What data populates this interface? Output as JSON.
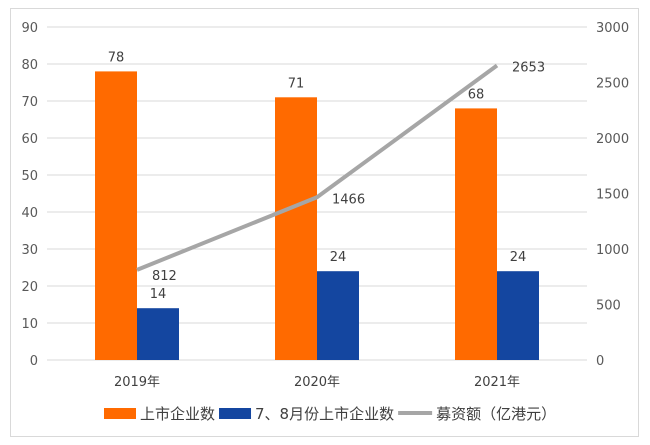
{
  "chart_data": {
    "type": "bar",
    "categories": [
      "2019年",
      "2020年",
      "2021年"
    ],
    "series": [
      {
        "name": "上市企业数",
        "type": "bar",
        "axis": "left",
        "values": [
          78,
          71,
          68
        ],
        "color": "#FF6A00"
      },
      {
        "name": "7、8月份上市企业数",
        "type": "bar",
        "axis": "left",
        "values": [
          14,
          24,
          24
        ],
        "color": "#1446A0"
      },
      {
        "name": "募资额（亿港元）",
        "type": "line",
        "axis": "right",
        "values": [
          812,
          1466,
          2653
        ],
        "color": "#A6A6A6"
      }
    ],
    "ylim_left": [
      0,
      90
    ],
    "yticks_left": [
      0,
      10,
      20,
      30,
      40,
      50,
      60,
      70,
      80,
      90
    ],
    "ylim_right": [
      0,
      3000
    ],
    "yticks_right": [
      0,
      500,
      1000,
      1500,
      2000,
      2500,
      3000
    ],
    "grid": true,
    "legend_position": "bottom",
    "data_labels": true
  }
}
